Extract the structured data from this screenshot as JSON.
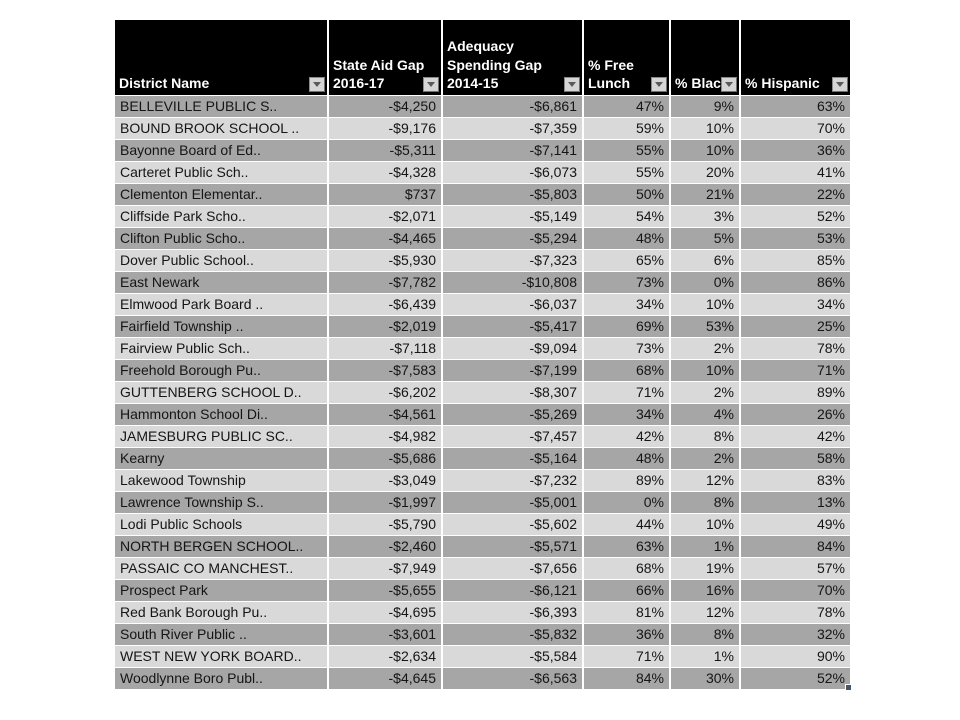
{
  "table": {
    "columns": [
      {
        "key": "district-name",
        "label": "District Name"
      },
      {
        "key": "state-aid-gap-2016-17",
        "label": "State Aid Gap 2016-17"
      },
      {
        "key": "adequacy-spending-gap-2014-15",
        "label": "Adequacy Spending Gap 2014-15"
      },
      {
        "key": "free-lunch",
        "label": "% Free Lunch"
      },
      {
        "key": "black",
        "label": "% Black"
      },
      {
        "key": "hispanic",
        "label": "% Hispanic"
      }
    ],
    "rows": [
      [
        "BELLEVILLE PUBLIC S..",
        "-$4,250",
        "-$6,861",
        "47%",
        "9%",
        "63%"
      ],
      [
        "BOUND BROOK SCHOOL ..",
        "-$9,176",
        "-$7,359",
        "59%",
        "10%",
        "70%"
      ],
      [
        "Bayonne Board of Ed..",
        "-$5,311",
        "-$7,141",
        "55%",
        "10%",
        "36%"
      ],
      [
        "Carteret Public Sch..",
        "-$4,328",
        "-$6,073",
        "55%",
        "20%",
        "41%"
      ],
      [
        "Clementon Elementar..",
        "$737",
        "-$5,803",
        "50%",
        "21%",
        "22%"
      ],
      [
        "Cliffside Park Scho..",
        "-$2,071",
        "-$5,149",
        "54%",
        "3%",
        "52%"
      ],
      [
        "Clifton Public Scho..",
        "-$4,465",
        "-$5,294",
        "48%",
        "5%",
        "53%"
      ],
      [
        "Dover Public School..",
        "-$5,930",
        "-$7,323",
        "65%",
        "6%",
        "85%"
      ],
      [
        "East Newark",
        "-$7,782",
        "-$10,808",
        "73%",
        "0%",
        "86%"
      ],
      [
        "Elmwood Park Board ..",
        "-$6,439",
        "-$6,037",
        "34%",
        "10%",
        "34%"
      ],
      [
        "Fairfield Township ..",
        "-$2,019",
        "-$5,417",
        "69%",
        "53%",
        "25%"
      ],
      [
        "Fairview Public Sch..",
        "-$7,118",
        "-$9,094",
        "73%",
        "2%",
        "78%"
      ],
      [
        "Freehold Borough Pu..",
        "-$7,583",
        "-$7,199",
        "68%",
        "10%",
        "71%"
      ],
      [
        "GUTTENBERG SCHOOL D..",
        "-$6,202",
        "-$8,307",
        "71%",
        "2%",
        "89%"
      ],
      [
        "Hammonton School Di..",
        "-$4,561",
        "-$5,269",
        "34%",
        "4%",
        "26%"
      ],
      [
        "JAMESBURG PUBLIC SC..",
        "-$4,982",
        "-$7,457",
        "42%",
        "8%",
        "42%"
      ],
      [
        "Kearny",
        "-$5,686",
        "-$5,164",
        "48%",
        "2%",
        "58%"
      ],
      [
        "Lakewood Township",
        "-$3,049",
        "-$7,232",
        "89%",
        "12%",
        "83%"
      ],
      [
        "Lawrence Township S..",
        "-$1,997",
        "-$5,001",
        "0%",
        "8%",
        "13%"
      ],
      [
        "Lodi Public Schools",
        "-$5,790",
        "-$5,602",
        "44%",
        "10%",
        "49%"
      ],
      [
        "NORTH BERGEN SCHOOL..",
        "-$2,460",
        "-$5,571",
        "63%",
        "1%",
        "84%"
      ],
      [
        "PASSAIC CO MANCHEST..",
        "-$7,949",
        "-$7,656",
        "68%",
        "19%",
        "57%"
      ],
      [
        "Prospect Park",
        "-$5,655",
        "-$6,121",
        "66%",
        "16%",
        "70%"
      ],
      [
        "Red Bank Borough Pu..",
        "-$4,695",
        "-$6,393",
        "81%",
        "12%",
        "78%"
      ],
      [
        "South River Public ..",
        "-$3,601",
        "-$5,832",
        "36%",
        "8%",
        "32%"
      ],
      [
        "WEST NEW YORK BOARD..",
        "-$2,634",
        "-$5,584",
        "71%",
        "1%",
        "90%"
      ],
      [
        "Woodlynne Boro Publ..",
        "-$4,645",
        "-$6,563",
        "84%",
        "30%",
        "52%"
      ]
    ]
  },
  "colors": {
    "header_bg": "#000000",
    "header_text": "#ffffff",
    "row_dark": "#a6a6a6",
    "row_light": "#d9d9d9",
    "gridline": "#ffffff",
    "filter_button_bg": "#d6d6d6",
    "filter_arrow": "#5a5a5a",
    "selection_handle": "#44546a"
  },
  "icons": {
    "filter_dropdown": "chevron-down-icon"
  }
}
